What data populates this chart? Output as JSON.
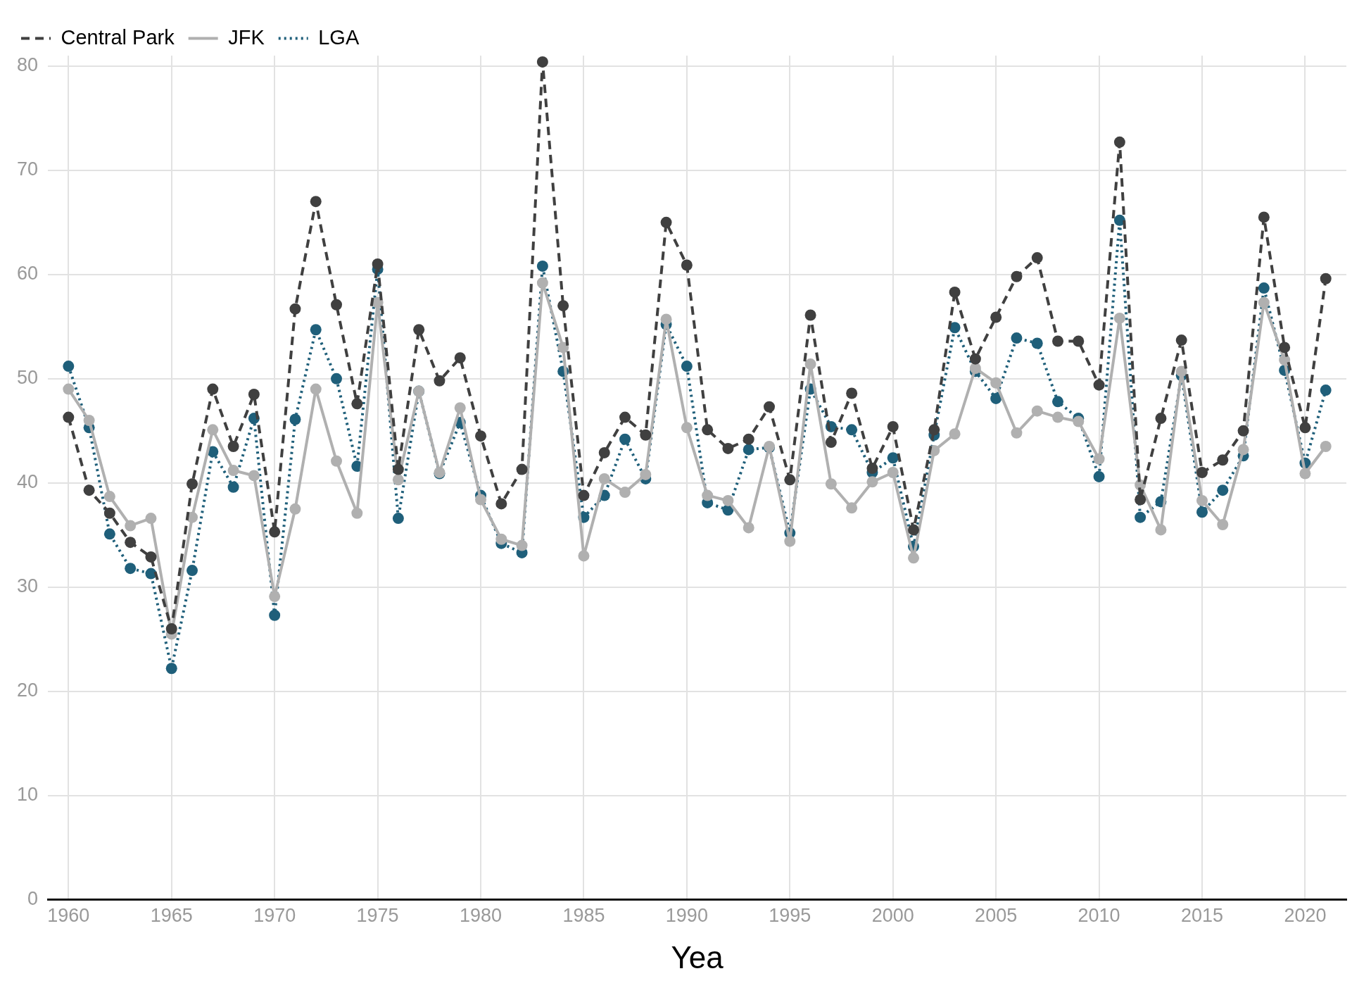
{
  "chart_data": {
    "type": "line",
    "xlabel": "Yea",
    "x": [
      1960,
      1961,
      1962,
      1963,
      1964,
      1965,
      1966,
      1967,
      1968,
      1969,
      1970,
      1971,
      1972,
      1973,
      1974,
      1975,
      1976,
      1977,
      1978,
      1979,
      1980,
      1981,
      1982,
      1983,
      1984,
      1985,
      1986,
      1987,
      1988,
      1989,
      1990,
      1991,
      1992,
      1993,
      1994,
      1995,
      1996,
      1997,
      1998,
      1999,
      2000,
      2001,
      2002,
      2003,
      2004,
      2005,
      2006,
      2007,
      2008,
      2009,
      2010,
      2011,
      2012,
      2013,
      2014,
      2015,
      2016,
      2017,
      2018,
      2019,
      2020,
      2021
    ],
    "series": [
      {
        "name": "Central Park",
        "color": "#404040",
        "line_style": "dashed",
        "values": [
          46.3,
          39.3,
          37.1,
          34.3,
          32.9,
          26.0,
          39.9,
          49.0,
          43.5,
          48.5,
          35.3,
          56.7,
          67.0,
          57.1,
          47.6,
          61.0,
          41.3,
          54.7,
          49.8,
          52.0,
          44.5,
          38.0,
          41.3,
          80.4,
          57.0,
          38.8,
          42.9,
          46.3,
          44.6,
          65.0,
          60.9,
          45.1,
          43.3,
          44.2,
          47.3,
          40.3,
          56.1,
          43.9,
          48.6,
          41.4,
          45.4,
          35.5,
          45.1,
          58.3,
          51.9,
          55.9,
          59.8,
          61.6,
          53.6,
          53.6,
          49.4,
          72.7,
          38.4,
          46.2,
          53.7,
          41.0,
          42.2,
          45.0,
          65.5,
          53.0,
          45.3,
          59.6
        ]
      },
      {
        "name": "JFK",
        "color": "#b0b0b0",
        "line_style": "solid",
        "values": [
          49.0,
          46.0,
          38.7,
          35.9,
          36.6,
          25.5,
          36.7,
          45.1,
          41.2,
          40.7,
          29.1,
          37.5,
          49.0,
          42.1,
          37.1,
          57.3,
          40.3,
          48.8,
          41.0,
          47.2,
          38.4,
          34.6,
          34.0,
          59.2,
          53.0,
          33.0,
          40.4,
          39.1,
          40.8,
          55.7,
          45.3,
          38.8,
          38.3,
          35.7,
          43.5,
          34.4,
          51.4,
          39.9,
          37.6,
          40.1,
          41.0,
          32.8,
          43.1,
          44.7,
          51.0,
          49.6,
          44.8,
          46.9,
          46.3,
          45.9,
          42.3,
          55.8,
          39.8,
          35.5,
          50.7,
          38.3,
          36.0,
          43.2,
          57.3,
          51.8,
          40.9,
          43.5
        ]
      },
      {
        "name": "LGA",
        "color": "#1f5f7a",
        "line_style": "dotted",
        "values": [
          51.2,
          45.3,
          35.1,
          31.8,
          31.3,
          22.2,
          31.6,
          43.0,
          39.6,
          46.2,
          27.3,
          46.1,
          54.7,
          50.0,
          41.6,
          60.5,
          36.6,
          48.8,
          40.9,
          45.8,
          38.8,
          34.2,
          33.3,
          60.8,
          50.7,
          36.7,
          38.8,
          44.2,
          40.4,
          55.2,
          51.2,
          38.1,
          37.4,
          43.2,
          43.4,
          35.2,
          49.0,
          45.4,
          45.1,
          41.0,
          42.4,
          33.9,
          44.6,
          54.9,
          50.7,
          48.1,
          53.9,
          53.4,
          47.8,
          46.2,
          40.6,
          65.2,
          36.7,
          38.2,
          50.3,
          37.2,
          39.3,
          42.6,
          58.7,
          50.8,
          41.9,
          48.9
        ]
      }
    ],
    "xlim": [
      1959,
      2022
    ],
    "xticks": [
      1960,
      1965,
      1970,
      1975,
      1980,
      1985,
      1990,
      1995,
      2000,
      2005,
      2010,
      2015,
      2020
    ],
    "ylim": [
      0,
      81
    ],
    "yticks": [
      0,
      10,
      20,
      30,
      40,
      50,
      60,
      70,
      80
    ],
    "grid": true,
    "legend": "top left",
    "marker": "circle"
  }
}
